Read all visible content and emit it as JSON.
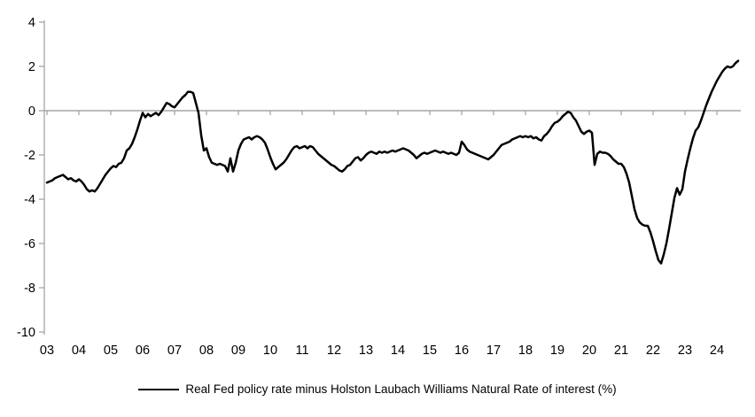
{
  "chart": {
    "legend_label": "Real Fed policy rate minus Holston Laubach Williams Natural Rate of interest (%)"
  },
  "chart_data": {
    "type": "line",
    "title": "",
    "xlabel": "",
    "ylabel": "",
    "unit": "%",
    "x_start": "2003-01",
    "x_step_months": 1,
    "x_tick_labels": [
      "03",
      "04",
      "05",
      "06",
      "07",
      "08",
      "09",
      "10",
      "11",
      "12",
      "13",
      "14",
      "15",
      "16",
      "17",
      "18",
      "19",
      "20",
      "21",
      "22",
      "23",
      "24"
    ],
    "y_ticks": [
      4,
      2,
      0,
      -2,
      -4,
      -6,
      -8,
      -10
    ],
    "ylim": [
      -10,
      4
    ],
    "grid": "zero-line-only",
    "legend_position": "bottom-center",
    "line_color": "#000000",
    "axis_color": "#a6a6a6",
    "series": [
      {
        "name": "Real Fed policy rate minus Holston Laubach Williams Natural Rate of interest (%)",
        "values": [
          -3.25,
          -3.2,
          -3.15,
          -3.05,
          -3.0,
          -2.95,
          -2.9,
          -3.0,
          -3.1,
          -3.05,
          -3.15,
          -3.2,
          -3.1,
          -3.2,
          -3.35,
          -3.55,
          -3.65,
          -3.6,
          -3.65,
          -3.5,
          -3.3,
          -3.1,
          -2.9,
          -2.75,
          -2.6,
          -2.5,
          -2.55,
          -2.4,
          -2.35,
          -2.15,
          -1.8,
          -1.7,
          -1.5,
          -1.2,
          -0.85,
          -0.45,
          -0.1,
          -0.3,
          -0.15,
          -0.25,
          -0.17,
          -0.1,
          -0.2,
          -0.05,
          0.15,
          0.35,
          0.3,
          0.2,
          0.15,
          0.3,
          0.45,
          0.6,
          0.7,
          0.85,
          0.85,
          0.8,
          0.35,
          -0.1,
          -1.1,
          -1.8,
          -1.7,
          -2.1,
          -2.35,
          -2.4,
          -2.45,
          -2.4,
          -2.45,
          -2.5,
          -2.75,
          -2.15,
          -2.75,
          -2.35,
          -1.8,
          -1.5,
          -1.3,
          -1.25,
          -1.2,
          -1.3,
          -1.2,
          -1.15,
          -1.2,
          -1.3,
          -1.45,
          -1.75,
          -2.1,
          -2.4,
          -2.65,
          -2.55,
          -2.45,
          -2.35,
          -2.2,
          -2.0,
          -1.8,
          -1.65,
          -1.6,
          -1.7,
          -1.65,
          -1.6,
          -1.7,
          -1.6,
          -1.65,
          -1.8,
          -1.95,
          -2.05,
          -2.15,
          -2.25,
          -2.35,
          -2.45,
          -2.5,
          -2.6,
          -2.7,
          -2.75,
          -2.65,
          -2.5,
          -2.45,
          -2.3,
          -2.15,
          -2.1,
          -2.25,
          -2.15,
          -2.0,
          -1.9,
          -1.85,
          -1.9,
          -1.95,
          -1.85,
          -1.9,
          -1.85,
          -1.9,
          -1.85,
          -1.8,
          -1.85,
          -1.8,
          -1.75,
          -1.7,
          -1.75,
          -1.8,
          -1.9,
          -2.0,
          -2.15,
          -2.05,
          -1.95,
          -1.9,
          -1.95,
          -1.9,
          -1.85,
          -1.8,
          -1.85,
          -1.9,
          -1.85,
          -1.9,
          -1.95,
          -1.9,
          -1.95,
          -2.0,
          -1.9,
          -1.4,
          -1.55,
          -1.75,
          -1.85,
          -1.9,
          -1.95,
          -2.0,
          -2.05,
          -2.1,
          -2.15,
          -2.2,
          -2.1,
          -2.0,
          -1.85,
          -1.7,
          -1.55,
          -1.5,
          -1.45,
          -1.4,
          -1.3,
          -1.25,
          -1.2,
          -1.15,
          -1.2,
          -1.15,
          -1.2,
          -1.15,
          -1.25,
          -1.2,
          -1.3,
          -1.35,
          -1.15,
          -1.05,
          -0.9,
          -0.7,
          -0.55,
          -0.5,
          -0.4,
          -0.25,
          -0.15,
          -0.05,
          -0.1,
          -0.3,
          -0.45,
          -0.7,
          -0.95,
          -1.05,
          -0.95,
          -0.9,
          -1.0,
          -2.45,
          -1.95,
          -1.85,
          -1.9,
          -1.9,
          -1.95,
          -2.05,
          -2.2,
          -2.3,
          -2.4,
          -2.4,
          -2.55,
          -2.85,
          -3.25,
          -3.85,
          -4.45,
          -4.85,
          -5.05,
          -5.15,
          -5.2,
          -5.2,
          -5.5,
          -5.9,
          -6.35,
          -6.75,
          -6.9,
          -6.5,
          -6.0,
          -5.35,
          -4.65,
          -3.95,
          -3.5,
          -3.8,
          -3.55,
          -2.75,
          -2.2,
          -1.7,
          -1.25,
          -0.9,
          -0.75,
          -0.45,
          -0.1,
          0.25,
          0.55,
          0.85,
          1.1,
          1.35,
          1.55,
          1.75,
          1.9,
          2.0,
          1.95,
          2.0,
          2.15,
          2.25
        ]
      }
    ]
  }
}
